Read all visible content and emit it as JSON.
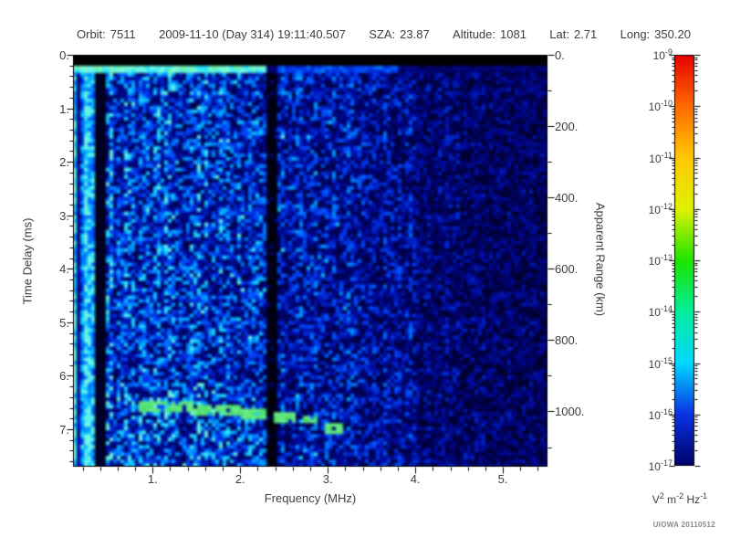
{
  "header": {
    "orbit_label": "Orbit:",
    "orbit_value": "7511",
    "datetime": "2009-11-10 (Day 314) 19:11:40.507",
    "sza_label": "SZA:",
    "sza_value": "23.87",
    "altitude_label": "Altitude:",
    "altitude_value": "1081",
    "lat_label": "Lat:",
    "lat_value": "2.71",
    "long_label": "Long:",
    "long_value": "350.20"
  },
  "footer": {
    "credit": "UIOWA 20110512"
  },
  "chart_data": {
    "type": "heatmap",
    "description": "Radar sounder ionogram spectrogram: spectral density vs frequency and time delay",
    "xlabel": "Frequency (MHz)",
    "ylabel_left": "Time Delay (ms)",
    "ylabel_right": "Apparent Range (km)",
    "x_range": [
      0.09,
      5.51
    ],
    "x_tick_labels": [
      "1.",
      "2.",
      "3.",
      "4.",
      "5."
    ],
    "x_tick_values": [
      1,
      2,
      3,
      4,
      5
    ],
    "x_minor_step": 0.2,
    "y_range": [
      0,
      7.7
    ],
    "y_tick_labels": [
      "0.",
      "1.",
      "2.",
      "3.",
      "4.",
      "5.",
      "6.",
      "7."
    ],
    "y_tick_values": [
      0,
      1,
      2,
      3,
      4,
      5,
      6,
      7
    ],
    "y_minor_step": 0.2,
    "right_range": [
      0,
      1155
    ],
    "right_tick_labels": [
      "0.",
      "200.",
      "400.",
      "600.",
      "800.",
      "1000."
    ],
    "right_tick_values": [
      0,
      200,
      400,
      600,
      800,
      1000
    ],
    "right_minor_step": 100,
    "grid": false,
    "colorbar": {
      "scale": "log",
      "tick_exponents": [
        -9,
        -10,
        -11,
        -12,
        -13,
        -14,
        -15,
        -16,
        -17
      ],
      "unit_segments": [
        [
          "V",
          "2"
        ],
        [
          "m",
          "-2"
        ],
        [
          "Hz",
          "-1"
        ]
      ],
      "gradient": [
        [
          "#e80000",
          0.0
        ],
        [
          "#ff6a00",
          0.125
        ],
        [
          "#ffc800",
          0.25
        ],
        [
          "#e0f200",
          0.375
        ],
        [
          "#1ee400",
          0.5
        ],
        [
          "#00ef9c",
          0.625
        ],
        [
          "#00d8ff",
          0.75
        ],
        [
          "#0a32e4",
          0.875
        ],
        [
          "#000068",
          1.0
        ]
      ]
    },
    "features": {
      "noise_seed": 7511,
      "top_black_band_ms": [
        0,
        0.235
      ],
      "transmit_line_ms": [
        0.24,
        0.34
      ],
      "transmit_line_strong_max_mhz": 2.3,
      "transmit_line_faint_max_mhz": 3.8,
      "vertical_streak_region_max_mhz": 0.45,
      "dark_band_mhz": [
        2.28,
        2.42
      ],
      "intensity_profile": [
        {
          "f_max": 0.45,
          "level": 0.8
        },
        {
          "f_max": 0.6,
          "level": 0.72
        },
        {
          "f_max": 1.9,
          "level": 0.66
        },
        {
          "f_max": 2.28,
          "level": 0.6
        },
        {
          "f_max": 2.42,
          "level": 0.06
        },
        {
          "f_max": 3.3,
          "level": 0.53
        },
        {
          "f_max": 4.0,
          "level": 0.44
        },
        {
          "f_max": 4.8,
          "level": 0.33
        },
        {
          "f_max": 5.51,
          "level": 0.3
        }
      ],
      "echo_trace_segments": [
        {
          "f": [
            0.85,
            1.45
          ],
          "t": 6.56
        },
        {
          "f": [
            1.45,
            2.0
          ],
          "t": 6.63
        },
        {
          "f": [
            2.0,
            2.3
          ],
          "t": 6.7
        },
        {
          "f": [
            2.38,
            2.62
          ],
          "t": 6.78
        },
        {
          "f": [
            2.72,
            2.9
          ],
          "t": 6.83
        },
        {
          "f": [
            2.96,
            3.18
          ],
          "t": 6.98
        }
      ]
    }
  }
}
